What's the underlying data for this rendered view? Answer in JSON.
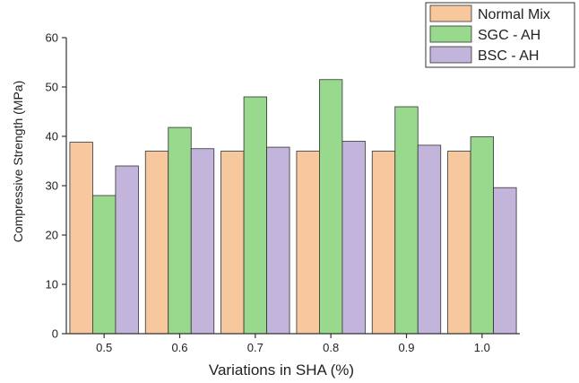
{
  "chart_data": {
    "type": "bar",
    "categories": [
      "0.5",
      "0.6",
      "0.7",
      "0.8",
      "0.9",
      "1.0"
    ],
    "series": [
      {
        "name": "Normal Mix",
        "values": [
          38.8,
          37.0,
          37.0,
          37.0,
          37.0,
          37.0
        ],
        "color": "#F7C89D"
      },
      {
        "name": "SGC - AH",
        "values": [
          28.0,
          41.8,
          48.0,
          51.5,
          46.0,
          39.9
        ],
        "color": "#98D98E"
      },
      {
        "name": "BSC - AH",
        "values": [
          34.0,
          37.5,
          37.8,
          39.0,
          38.2,
          29.6
        ],
        "color": "#C3B4DB"
      }
    ],
    "xlabel": "Variations in SHA (%)",
    "ylabel": "Compressive Strength (MPa)",
    "ylim": [
      0,
      60
    ],
    "yticks": [
      0,
      10,
      20,
      30,
      40,
      50,
      60
    ],
    "grid": false,
    "legend_position": "top-right",
    "axis_color": "#333333"
  }
}
